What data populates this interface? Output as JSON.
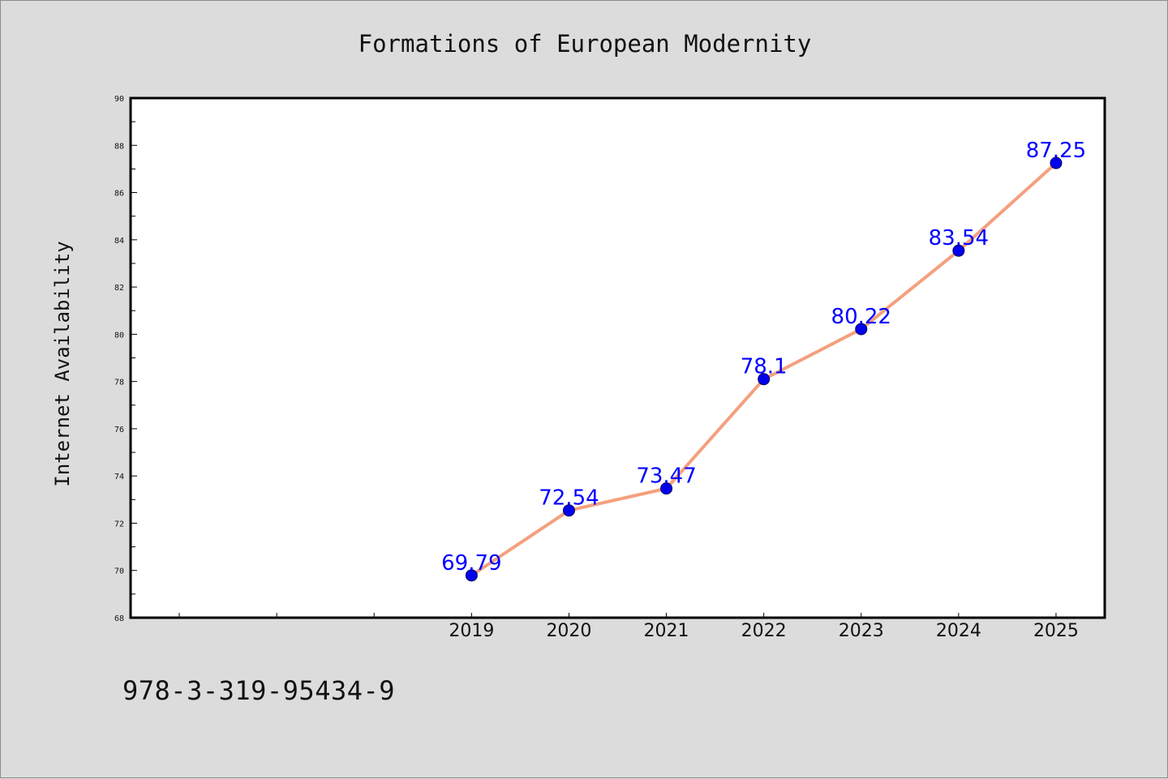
{
  "chart_data": {
    "type": "line",
    "title": "Formations of European Modernity",
    "xlabel": "",
    "ylabel": "Internet Availability",
    "categories": [
      "2019",
      "2020",
      "2021",
      "2022",
      "2023",
      "2024",
      "2025"
    ],
    "series": [
      {
        "values": [
          69.79,
          72.54,
          73.47,
          78.1,
          80.22,
          83.54,
          87.25
        ],
        "labels": [
          "69.79",
          "72.54",
          "73.47",
          "78.1",
          "80.22",
          "83.54",
          "87.25"
        ]
      }
    ],
    "ylim": [
      68,
      90
    ],
    "yticks": [
      68,
      70,
      72,
      74,
      76,
      78,
      80,
      82,
      84,
      86,
      88,
      90
    ],
    "xlim": [
      2015.5,
      2025.5
    ],
    "grid": false,
    "legend": "none",
    "line_color": "#f4a07f",
    "marker_color": "#0000ee",
    "label_color": "#0000ff"
  },
  "footer": {
    "isbn": "978-3-319-95434-9"
  }
}
